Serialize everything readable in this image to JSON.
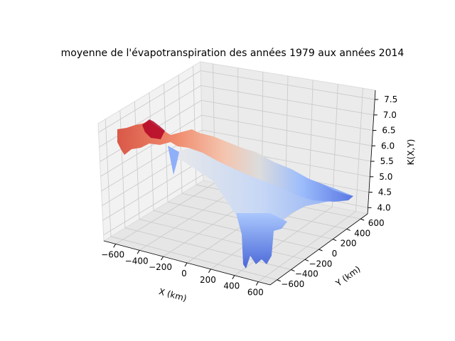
{
  "chart_data": {
    "type": "surface3d",
    "title": "moyenne de l'évapotranspiration des années 1979 aux années 2014",
    "xlabel": "X (km)",
    "ylabel": "Y (km)",
    "zlabel": "K(X,Y)",
    "xlim": [
      -700,
      700
    ],
    "ylim": [
      -700,
      700
    ],
    "zlim": [
      3.8,
      7.8
    ],
    "x_ticks": [
      "−600",
      "−400",
      "−200",
      "0",
      "200",
      "400",
      "600"
    ],
    "y_ticks": [
      "−600",
      "−400",
      "−200",
      "0",
      "200",
      "400",
      "600"
    ],
    "z_ticks": [
      "4.0",
      "4.5",
      "5.0",
      "5.5",
      "6.0",
      "6.5",
      "7.0",
      "7.5"
    ],
    "colormap": "coolwarm",
    "grid": true,
    "surface_profile": [
      {
        "x": -650,
        "y": -600,
        "z": 6.5
      },
      {
        "x": -450,
        "y": -450,
        "z": 6.9
      },
      {
        "x": -250,
        "y": -300,
        "z": 6.4
      },
      {
        "x": -50,
        "y": -150,
        "z": 5.8
      },
      {
        "x": 150,
        "y": 0,
        "z": 5.3
      },
      {
        "x": 350,
        "y": 200,
        "z": 4.9
      },
      {
        "x": 550,
        "y": 450,
        "z": 4.4
      },
      {
        "x": 650,
        "y": 600,
        "z": 4.6
      }
    ],
    "depression": {
      "x_range": [
        100,
        350
      ],
      "y_range": [
        -350,
        -100
      ],
      "z_min": 3.9
    },
    "colors": {
      "high": "#b40426",
      "mid": "#dddddd",
      "low": "#3b4cc0"
    }
  }
}
